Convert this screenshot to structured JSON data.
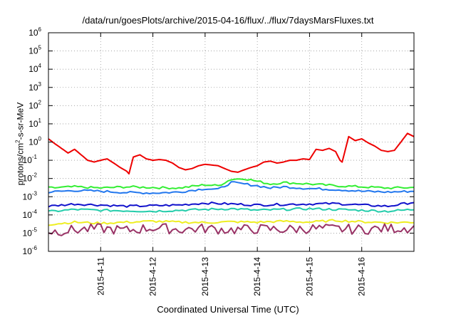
{
  "page": {
    "title": "/data/run/goesPlots/archive/2015-04-16/flux/../flux/7daysMarsFluxes.txt"
  },
  "chart_data": {
    "type": "line",
    "title": "/data/run/goesPlots/archive/2015-04-16/flux/../flux/7daysMarsFluxes.txt",
    "xlabel": "Coordinated Universal Time (UTC)",
    "ylabel": "protons/cm2-s-sr-MeV",
    "ylabel_parts": [
      "protons/cm",
      "2",
      "-s-sr-MeV"
    ],
    "y_scale": "log",
    "ylim": [
      1e-06,
      1000000
    ],
    "y_ticks": [
      {
        "base": "10",
        "exp": "-6"
      },
      {
        "base": "10",
        "exp": "-5"
      },
      {
        "base": "10",
        "exp": "-4"
      },
      {
        "base": "10",
        "exp": "-3"
      },
      {
        "base": "10",
        "exp": "-2"
      },
      {
        "base": "10",
        "exp": "-1"
      },
      {
        "base": "10",
        "exp": "0"
      },
      {
        "base": "10",
        "exp": "1"
      },
      {
        "base": "10",
        "exp": "2"
      },
      {
        "base": "10",
        "exp": "3"
      },
      {
        "base": "10",
        "exp": "4"
      },
      {
        "base": "10",
        "exp": "5"
      },
      {
        "base": "10",
        "exp": "6"
      }
    ],
    "xlim": [
      "2015-04-10T00:00",
      "2015-04-17T00:00"
    ],
    "x_ticks": [
      "2015-4-11",
      "2015-4-12",
      "2015-4-13",
      "2015-4-14",
      "2015-4-15",
      "2015-4-16"
    ],
    "grid": "dotted",
    "legend": "none",
    "series": [
      {
        "color": "#ee0000",
        "x": [
          "2015-04-10T00:00",
          "2015-04-10T03:00",
          "2015-04-10T06:00",
          "2015-04-10T09:00",
          "2015-04-10T12:00",
          "2015-04-10T15:00",
          "2015-04-10T18:00",
          "2015-04-10T21:00",
          "2015-04-11T00:00",
          "2015-04-11T03:00",
          "2015-04-11T06:00",
          "2015-04-11T09:00",
          "2015-04-11T12:00",
          "2015-04-11T13:00",
          "2015-04-11T15:00",
          "2015-04-11T18:00",
          "2015-04-11T21:00",
          "2015-04-12T00:00",
          "2015-04-12T03:00",
          "2015-04-12T06:00",
          "2015-04-12T09:00",
          "2015-04-12T12:00",
          "2015-04-12T15:00",
          "2015-04-12T18:00",
          "2015-04-12T21:00",
          "2015-04-13T00:00",
          "2015-04-13T03:00",
          "2015-04-13T06:00",
          "2015-04-13T09:00",
          "2015-04-13T12:00",
          "2015-04-13T15:00",
          "2015-04-13T18:00",
          "2015-04-13T21:00",
          "2015-04-14T00:00",
          "2015-04-14T03:00",
          "2015-04-14T06:00",
          "2015-04-14T09:00",
          "2015-04-14T12:00",
          "2015-04-14T15:00",
          "2015-04-14T18:00",
          "2015-04-14T21:00",
          "2015-04-15T00:00",
          "2015-04-15T03:00",
          "2015-04-15T06:00",
          "2015-04-15T09:00",
          "2015-04-15T12:00",
          "2015-04-15T14:00",
          "2015-04-15T15:00",
          "2015-04-15T18:00",
          "2015-04-15T21:00",
          "2015-04-16T00:00",
          "2015-04-16T03:00",
          "2015-04-16T06:00",
          "2015-04-16T09:00",
          "2015-04-16T12:00",
          "2015-04-16T15:00",
          "2015-04-16T18:00",
          "2015-04-16T21:00",
          "2015-04-17T00:00"
        ],
        "y": [
          1.5,
          0.8,
          0.45,
          0.25,
          0.4,
          0.2,
          0.1,
          0.08,
          0.1,
          0.12,
          0.07,
          0.04,
          0.025,
          0.018,
          0.15,
          0.2,
          0.12,
          0.1,
          0.11,
          0.1,
          0.07,
          0.04,
          0.03,
          0.035,
          0.05,
          0.06,
          0.055,
          0.05,
          0.035,
          0.025,
          0.022,
          0.03,
          0.04,
          0.05,
          0.08,
          0.09,
          0.07,
          0.08,
          0.1,
          0.1,
          0.12,
          0.11,
          0.4,
          0.35,
          0.45,
          0.3,
          0.1,
          0.08,
          2,
          1.2,
          1.5,
          0.9,
          0.6,
          0.35,
          0.3,
          0.35,
          1,
          3,
          2
        ]
      },
      {
        "color": "#33ee33",
        "x": [
          "2015-04-10T00:00",
          "2015-04-10T12:00",
          "2015-04-11T00:00",
          "2015-04-11T12:00",
          "2015-04-12T00:00",
          "2015-04-12T12:00",
          "2015-04-13T00:00",
          "2015-04-13T06:00",
          "2015-04-13T12:00",
          "2015-04-13T18:00",
          "2015-04-14T00:00",
          "2015-04-14T06:00",
          "2015-04-14T12:00",
          "2015-04-15T00:00",
          "2015-04-15T12:00",
          "2015-04-16T00:00",
          "2015-04-16T12:00",
          "2015-04-17T00:00"
        ],
        "y": [
          0.003,
          0.0035,
          0.003,
          0.0035,
          0.0032,
          0.003,
          0.0045,
          0.004,
          0.009,
          0.01,
          0.007,
          0.005,
          0.006,
          0.005,
          0.004,
          0.0035,
          0.003,
          0.0032
        ]
      },
      {
        "color": "#2277ee",
        "x": [
          "2015-04-10T00:00",
          "2015-04-10T12:00",
          "2015-04-11T00:00",
          "2015-04-11T12:00",
          "2015-04-12T00:00",
          "2015-04-12T12:00",
          "2015-04-13T00:00",
          "2015-04-13T06:00",
          "2015-04-13T12:00",
          "2015-04-13T18:00",
          "2015-04-14T00:00",
          "2015-04-14T06:00",
          "2015-04-14T12:00",
          "2015-04-15T00:00",
          "2015-04-15T12:00",
          "2015-04-16T00:00",
          "2015-04-16T12:00",
          "2015-04-17T00:00"
        ],
        "y": [
          0.0018,
          0.0022,
          0.002,
          0.0017,
          0.0016,
          0.0018,
          0.0028,
          0.0025,
          0.006,
          0.005,
          0.004,
          0.003,
          0.0035,
          0.0028,
          0.0025,
          0.002,
          0.0018,
          0.002
        ]
      },
      {
        "color": "#1111cc",
        "x": [
          "2015-04-10T00:00",
          "2015-04-10T12:00",
          "2015-04-11T00:00",
          "2015-04-11T12:00",
          "2015-04-12T00:00",
          "2015-04-12T12:00",
          "2015-04-13T00:00",
          "2015-04-13T12:00",
          "2015-04-14T00:00",
          "2015-04-14T12:00",
          "2015-04-15T00:00",
          "2015-04-15T12:00",
          "2015-04-16T00:00",
          "2015-04-16T12:00",
          "2015-04-17T00:00"
        ],
        "y": [
          0.0003,
          0.0004,
          0.00035,
          0.0003,
          0.00032,
          0.00035,
          0.00045,
          0.0004,
          0.00035,
          0.00038,
          0.0004,
          0.00042,
          0.00035,
          0.0003,
          0.0005
        ]
      },
      {
        "color": "#22ccaa",
        "x": [
          "2015-04-10T00:00",
          "2015-04-10T12:00",
          "2015-04-11T00:00",
          "2015-04-11T12:00",
          "2015-04-12T00:00",
          "2015-04-12T12:00",
          "2015-04-13T00:00",
          "2015-04-13T12:00",
          "2015-04-14T00:00",
          "2015-04-14T12:00",
          "2015-04-15T00:00",
          "2015-04-15T12:00",
          "2015-04-16T00:00",
          "2015-04-16T12:00",
          "2015-04-17T00:00"
        ],
        "y": [
          0.00015,
          0.0002,
          0.00018,
          0.00017,
          0.00016,
          0.00018,
          0.0002,
          0.00022,
          0.00018,
          0.0002,
          0.00022,
          0.0002,
          0.00018,
          0.00016,
          0.0002
        ]
      },
      {
        "color": "#eeee22",
        "x": [
          "2015-04-10T00:00",
          "2015-04-10T12:00",
          "2015-04-11T00:00",
          "2015-04-11T12:00",
          "2015-04-12T00:00",
          "2015-04-12T12:00",
          "2015-04-13T00:00",
          "2015-04-13T12:00",
          "2015-04-14T00:00",
          "2015-04-14T12:00",
          "2015-04-15T00:00",
          "2015-04-15T12:00",
          "2015-04-16T00:00",
          "2015-04-16T12:00",
          "2015-04-17T00:00"
        ],
        "y": [
          3e-05,
          4e-05,
          3.5e-05,
          4e-05,
          4.5e-05,
          4e-05,
          3.8e-05,
          4.2e-05,
          4e-05,
          4.5e-05,
          4e-05,
          5e-05,
          4.2e-05,
          3.8e-05,
          4e-05
        ]
      },
      {
        "color": "#993366",
        "x": [
          "2015-04-10T00:00",
          "2015-04-10T12:00",
          "2015-04-11T00:00",
          "2015-04-11T12:00",
          "2015-04-12T00:00",
          "2015-04-12T12:00",
          "2015-04-13T00:00",
          "2015-04-13T12:00",
          "2015-04-14T00:00",
          "2015-04-14T12:00",
          "2015-04-15T00:00",
          "2015-04-15T12:00",
          "2015-04-16T00:00",
          "2015-04-16T12:00",
          "2015-04-17T00:00"
        ],
        "y": [
          1.2e-05,
          1.5e-05,
          1.8e-05,
          1.4e-05,
          2e-05,
          1.6e-05,
          1.8e-05,
          1.5e-05,
          1.7e-05,
          1.6e-05,
          1.8e-05,
          1.7e-05,
          1.6e-05,
          1.8e-05,
          2e-05
        ]
      }
    ]
  }
}
